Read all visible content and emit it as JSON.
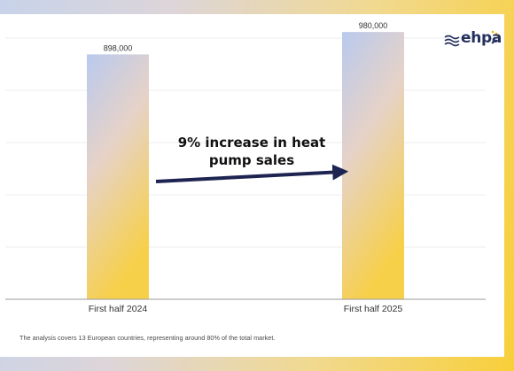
{
  "chart_data": {
    "type": "bar",
    "categories": [
      "First half 2024",
      "First half 2025"
    ],
    "values": [
      898000,
      980000
    ],
    "value_labels": [
      "898,000",
      "980,000"
    ],
    "title": "",
    "xlabel": "",
    "ylabel": "",
    "ylim": [
      0,
      1000000
    ],
    "grid": true,
    "legend": "none",
    "annotation": "9% increase in heat pump sales",
    "annotation_lines": [
      "9% increase in heat",
      "pump sales"
    ]
  },
  "footnote": "The analysis covers 13 European countries, representing around 80% of the total market.",
  "logo": {
    "text": "ehpa",
    "dot": "."
  },
  "colors": {
    "bar_top": "#b9caee",
    "bar_mid": "#e6d2c8",
    "bar_bottom": "#f7d04a",
    "arrow": "#1e2451",
    "grid": "#e9e9e9",
    "axis": "#9a9a9a",
    "logo": "#24305e",
    "logo_accent": "#f2b705"
  }
}
